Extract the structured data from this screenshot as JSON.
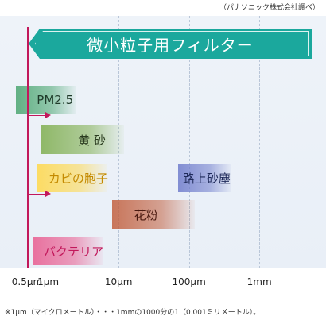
{
  "source_note": "（パナソニック株式会社調べ）",
  "footnote": "※1μm（マイクロメートル）・・・1mmの1000分の1（0.001ミリメートル）。",
  "chart_data": {
    "type": "bar",
    "title": "微小粒子用フィルター",
    "x_scale": "log",
    "x_ticks": [
      {
        "label": "0.5μm",
        "value": 0.5
      },
      {
        "label": "1μm",
        "value": 1
      },
      {
        "label": "10μm",
        "value": 10
      },
      {
        "label": "100μm",
        "value": 100
      },
      {
        "label": "1mm",
        "value": 1000
      }
    ],
    "filter_min_um": 0.5,
    "ranges": [
      {
        "label": "PM2.5",
        "min_um": 0.35,
        "max_um": 2.5,
        "color": "#49a56f"
      },
      {
        "label": "黄 砂",
        "min_um": 0.8,
        "max_um": 12,
        "color": "#7fae4f"
      },
      {
        "label": "カビの胞子",
        "min_um": 0.7,
        "max_um": 7,
        "color": "#ffd84a"
      },
      {
        "label": "路上砂塵",
        "min_um": 70,
        "max_um": 400,
        "color": "#6f7ccc"
      },
      {
        "label": "花粉",
        "min_um": 8,
        "max_um": 120,
        "color": "#c2603f"
      },
      {
        "label": "バクテリア",
        "min_um": 0.6,
        "max_um": 6,
        "color": "#e95a8e"
      }
    ]
  }
}
